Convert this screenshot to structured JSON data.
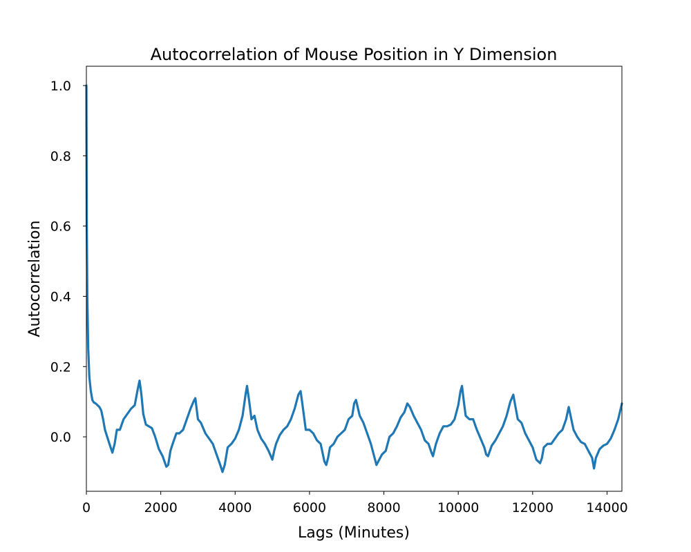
{
  "chart_data": {
    "type": "line",
    "title": "Autocorrelation of Mouse Position in Y Dimension",
    "xlabel": "Lags (Minutes)",
    "ylabel": "Autocorrelation",
    "xlim": [
      0,
      14400
    ],
    "ylim": [
      -0.155,
      1.055
    ],
    "xticks": [
      0,
      2000,
      4000,
      6000,
      8000,
      10000,
      12000,
      14000
    ],
    "xtick_labels": [
      "0",
      "2000",
      "4000",
      "6000",
      "8000",
      "10000",
      "12000",
      "14000"
    ],
    "yticks": [
      0.0,
      0.2,
      0.4,
      0.6,
      0.8,
      1.0
    ],
    "ytick_labels": [
      "0.0",
      "0.2",
      "0.4",
      "0.6",
      "0.8",
      "1.0"
    ],
    "grid": false,
    "line_color": "#1f77b4",
    "series": [
      {
        "x": [
          0,
          10,
          25,
          50,
          80,
          120,
          160,
          200,
          250,
          300,
          350,
          400,
          450,
          500,
          560,
          620,
          700,
          760,
          820,
          900,
          1000,
          1100,
          1200,
          1300,
          1380,
          1430,
          1480,
          1530,
          1600,
          1680,
          1760,
          1850,
          1950,
          2050,
          2150,
          2200,
          2260,
          2320,
          2420,
          2500,
          2600,
          2700,
          2800,
          2880,
          2930,
          3000,
          3080,
          3200,
          3300,
          3400,
          3500,
          3600,
          3660,
          3720,
          3800,
          3900,
          4000,
          4100,
          4200,
          4280,
          4320,
          4380,
          4440,
          4520,
          4600,
          4700,
          4800,
          4900,
          5000,
          5050,
          5100,
          5200,
          5300,
          5400,
          5500,
          5600,
          5700,
          5760,
          5800,
          5850,
          5900,
          6000,
          6100,
          6200,
          6300,
          6400,
          6450,
          6500,
          6550,
          6650,
          6750,
          6850,
          6950,
          7050,
          7150,
          7200,
          7250,
          7350,
          7450,
          7550,
          7650,
          7750,
          7800,
          7850,
          7950,
          8050,
          8150,
          8250,
          8350,
          8450,
          8550,
          8630,
          8700,
          8800,
          8900,
          9000,
          9100,
          9200,
          9280,
          9320,
          9400,
          9500,
          9600,
          9700,
          9800,
          9900,
          10000,
          10060,
          10100,
          10150,
          10200,
          10300,
          10400,
          10500,
          10600,
          10700,
          10750,
          10800,
          10900,
          11000,
          11100,
          11200,
          11300,
          11400,
          11480,
          11530,
          11600,
          11700,
          11800,
          11900,
          12000,
          12100,
          12200,
          12250,
          12300,
          12400,
          12500,
          12600,
          12700,
          12800,
          12900,
          12970,
          13020,
          13100,
          13200,
          13300,
          13400,
          13500,
          13600,
          13650,
          13700,
          13800,
          13900,
          14000,
          14100,
          14200,
          14300,
          14400
        ],
        "y": [
          1.0,
          0.62,
          0.4,
          0.25,
          0.17,
          0.13,
          0.105,
          0.098,
          0.095,
          0.09,
          0.085,
          0.075,
          0.05,
          0.02,
          0.0,
          -0.02,
          -0.045,
          -0.02,
          0.02,
          0.02,
          0.05,
          0.065,
          0.08,
          0.09,
          0.135,
          0.16,
          0.12,
          0.065,
          0.035,
          0.03,
          0.025,
          0.0,
          -0.035,
          -0.055,
          -0.085,
          -0.08,
          -0.04,
          -0.02,
          0.01,
          0.01,
          0.02,
          0.05,
          0.08,
          0.1,
          0.11,
          0.05,
          0.04,
          0.01,
          -0.005,
          -0.02,
          -0.05,
          -0.08,
          -0.1,
          -0.08,
          -0.03,
          -0.02,
          -0.005,
          0.02,
          0.06,
          0.12,
          0.145,
          0.1,
          0.05,
          0.06,
          0.02,
          -0.005,
          -0.02,
          -0.04,
          -0.065,
          -0.04,
          -0.02,
          0.005,
          0.02,
          0.03,
          0.05,
          0.08,
          0.12,
          0.13,
          0.1,
          0.06,
          0.02,
          0.02,
          0.01,
          -0.01,
          -0.02,
          -0.07,
          -0.08,
          -0.06,
          -0.03,
          -0.02,
          0.0,
          0.01,
          0.02,
          0.05,
          0.06,
          0.095,
          0.105,
          0.06,
          0.04,
          0.01,
          -0.02,
          -0.06,
          -0.08,
          -0.07,
          -0.05,
          -0.04,
          0.0,
          0.01,
          0.03,
          0.055,
          0.07,
          0.095,
          0.085,
          0.06,
          0.04,
          0.02,
          -0.01,
          -0.02,
          -0.045,
          -0.055,
          -0.02,
          0.01,
          0.03,
          0.03,
          0.035,
          0.05,
          0.09,
          0.13,
          0.145,
          0.1,
          0.06,
          0.05,
          0.05,
          0.02,
          -0.005,
          -0.03,
          -0.05,
          -0.055,
          -0.025,
          -0.01,
          0.01,
          0.03,
          0.06,
          0.1,
          0.12,
          0.09,
          0.05,
          0.04,
          0.01,
          -0.01,
          -0.03,
          -0.065,
          -0.075,
          -0.06,
          -0.03,
          -0.02,
          -0.02,
          -0.005,
          0.01,
          0.02,
          0.05,
          0.085,
          0.06,
          0.02,
          0.0,
          -0.015,
          -0.02,
          -0.04,
          -0.06,
          -0.09,
          -0.06,
          -0.035,
          -0.025,
          -0.02,
          -0.005,
          0.02,
          0.05,
          0.095
        ]
      }
    ]
  }
}
